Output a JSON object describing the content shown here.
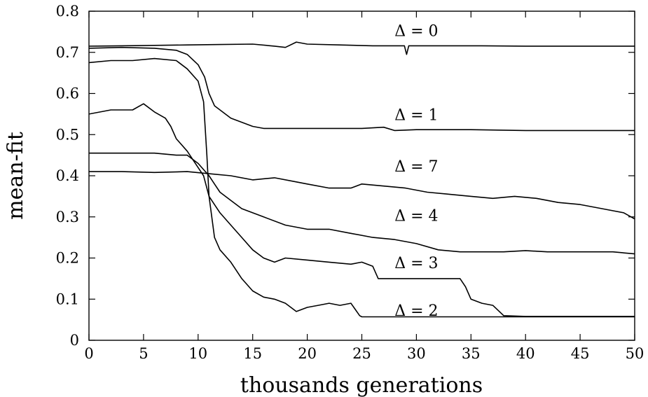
{
  "chart_data": {
    "type": "line",
    "title": "",
    "xlabel": "thousands generations",
    "ylabel": "mean-fit",
    "xlim": [
      0,
      50
    ],
    "ylim": [
      0,
      0.8
    ],
    "xticks": [
      "0",
      "5",
      "10",
      "15",
      "20",
      "25",
      "30",
      "35",
      "40",
      "45",
      "50"
    ],
    "yticks": [
      "0",
      "0.1",
      "0.2",
      "0.3",
      "0.4",
      "0.5",
      "0.6",
      "0.7",
      "0.8"
    ],
    "grid": false,
    "legend": "inline labels",
    "series": [
      {
        "label": "Δ = 0",
        "label_anchor": [
          28,
          0.74
        ],
        "points": [
          [
            0,
            0.715
          ],
          [
            3,
            0.716
          ],
          [
            6,
            0.717
          ],
          [
            9,
            0.718
          ],
          [
            12,
            0.719
          ],
          [
            15,
            0.72
          ],
          [
            17,
            0.715
          ],
          [
            18,
            0.712
          ],
          [
            19,
            0.725
          ],
          [
            20,
            0.72
          ],
          [
            23,
            0.718
          ],
          [
            26,
            0.716
          ],
          [
            28.9,
            0.716
          ],
          [
            29.1,
            0.695
          ],
          [
            29.3,
            0.716
          ],
          [
            32,
            0.716
          ],
          [
            36,
            0.716
          ],
          [
            40,
            0.715
          ],
          [
            45,
            0.715
          ],
          [
            50,
            0.715
          ]
        ]
      },
      {
        "label": "Δ = 1",
        "label_anchor": [
          28,
          0.535
        ],
        "points": [
          [
            0,
            0.71
          ],
          [
            3,
            0.712
          ],
          [
            6,
            0.71
          ],
          [
            8,
            0.705
          ],
          [
            9,
            0.695
          ],
          [
            10,
            0.67
          ],
          [
            10.6,
            0.64
          ],
          [
            11,
            0.6
          ],
          [
            11.5,
            0.57
          ],
          [
            12,
            0.56
          ],
          [
            13,
            0.54
          ],
          [
            14,
            0.53
          ],
          [
            15,
            0.52
          ],
          [
            16,
            0.515
          ],
          [
            18,
            0.515
          ],
          [
            20,
            0.515
          ],
          [
            22,
            0.515
          ],
          [
            25,
            0.515
          ],
          [
            27,
            0.518
          ],
          [
            28,
            0.51
          ],
          [
            30,
            0.512
          ],
          [
            35,
            0.512
          ],
          [
            40,
            0.51
          ],
          [
            45,
            0.51
          ],
          [
            50,
            0.51
          ]
        ]
      },
      {
        "label": "Δ = 7",
        "label_anchor": [
          28,
          0.41
        ],
        "points": [
          [
            0,
            0.41
          ],
          [
            3,
            0.41
          ],
          [
            6,
            0.408
          ],
          [
            9,
            0.41
          ],
          [
            11,
            0.405
          ],
          [
            13,
            0.4
          ],
          [
            15,
            0.39
          ],
          [
            17,
            0.395
          ],
          [
            19,
            0.385
          ],
          [
            20,
            0.38
          ],
          [
            22,
            0.37
          ],
          [
            24,
            0.37
          ],
          [
            25,
            0.38
          ],
          [
            27,
            0.375
          ],
          [
            29,
            0.37
          ],
          [
            31,
            0.36
          ],
          [
            33,
            0.355
          ],
          [
            35,
            0.35
          ],
          [
            37,
            0.345
          ],
          [
            39,
            0.35
          ],
          [
            41,
            0.345
          ],
          [
            43,
            0.335
          ],
          [
            45,
            0.33
          ],
          [
            47,
            0.32
          ],
          [
            49,
            0.31
          ],
          [
            50,
            0.295
          ]
        ]
      },
      {
        "label": "Δ = 4",
        "label_anchor": [
          28,
          0.29
        ],
        "points": [
          [
            0,
            0.455
          ],
          [
            3,
            0.455
          ],
          [
            6,
            0.455
          ],
          [
            8,
            0.45
          ],
          [
            9,
            0.45
          ],
          [
            10,
            0.43
          ],
          [
            11,
            0.4
          ],
          [
            11.5,
            0.38
          ],
          [
            12,
            0.36
          ],
          [
            13,
            0.34
          ],
          [
            14,
            0.32
          ],
          [
            15,
            0.31
          ],
          [
            16,
            0.3
          ],
          [
            18,
            0.28
          ],
          [
            20,
            0.27
          ],
          [
            22,
            0.27
          ],
          [
            24,
            0.26
          ],
          [
            26,
            0.25
          ],
          [
            28,
            0.245
          ],
          [
            30,
            0.235
          ],
          [
            32,
            0.22
          ],
          [
            34,
            0.215
          ],
          [
            36,
            0.215
          ],
          [
            38,
            0.215
          ],
          [
            40,
            0.218
          ],
          [
            42,
            0.215
          ],
          [
            44,
            0.215
          ],
          [
            46,
            0.215
          ],
          [
            48,
            0.215
          ],
          [
            50,
            0.21
          ]
        ]
      },
      {
        "label": "Δ = 3",
        "label_anchor": [
          28,
          0.175
        ],
        "points": [
          [
            0,
            0.55
          ],
          [
            2,
            0.56
          ],
          [
            4,
            0.56
          ],
          [
            5,
            0.575
          ],
          [
            6,
            0.555
          ],
          [
            7,
            0.54
          ],
          [
            7.5,
            0.52
          ],
          [
            8,
            0.49
          ],
          [
            9,
            0.46
          ],
          [
            10,
            0.42
          ],
          [
            10.5,
            0.4
          ],
          [
            11,
            0.35
          ],
          [
            12,
            0.31
          ],
          [
            13,
            0.28
          ],
          [
            14,
            0.25
          ],
          [
            15,
            0.22
          ],
          [
            16,
            0.2
          ],
          [
            17,
            0.19
          ],
          [
            18,
            0.2
          ],
          [
            20,
            0.195
          ],
          [
            22,
            0.19
          ],
          [
            24,
            0.185
          ],
          [
            25,
            0.19
          ],
          [
            26,
            0.18
          ],
          [
            26.5,
            0.15
          ],
          [
            28,
            0.15
          ],
          [
            30,
            0.15
          ],
          [
            32,
            0.15
          ],
          [
            34,
            0.15
          ],
          [
            34.5,
            0.13
          ],
          [
            35,
            0.1
          ],
          [
            36,
            0.09
          ],
          [
            37,
            0.085
          ],
          [
            38,
            0.06
          ],
          [
            40,
            0.058
          ],
          [
            45,
            0.058
          ],
          [
            50,
            0.058
          ]
        ]
      },
      {
        "label": "Δ = 2",
        "label_anchor": [
          28,
          0.06
        ],
        "points": [
          [
            0,
            0.675
          ],
          [
            2,
            0.68
          ],
          [
            4,
            0.68
          ],
          [
            6,
            0.685
          ],
          [
            8,
            0.68
          ],
          [
            9,
            0.66
          ],
          [
            10,
            0.63
          ],
          [
            10.5,
            0.58
          ],
          [
            10.8,
            0.45
          ],
          [
            11,
            0.35
          ],
          [
            11.5,
            0.25
          ],
          [
            12,
            0.22
          ],
          [
            13,
            0.19
          ],
          [
            14,
            0.15
          ],
          [
            15,
            0.12
          ],
          [
            16,
            0.105
          ],
          [
            17,
            0.1
          ],
          [
            18,
            0.09
          ],
          [
            19,
            0.07
          ],
          [
            20,
            0.08
          ],
          [
            21,
            0.085
          ],
          [
            22,
            0.09
          ],
          [
            23,
            0.085
          ],
          [
            24,
            0.09
          ],
          [
            24.8,
            0.06
          ],
          [
            25,
            0.057
          ],
          [
            30,
            0.057
          ],
          [
            35,
            0.057
          ],
          [
            40,
            0.057
          ],
          [
            45,
            0.057
          ],
          [
            50,
            0.057
          ]
        ]
      }
    ]
  }
}
